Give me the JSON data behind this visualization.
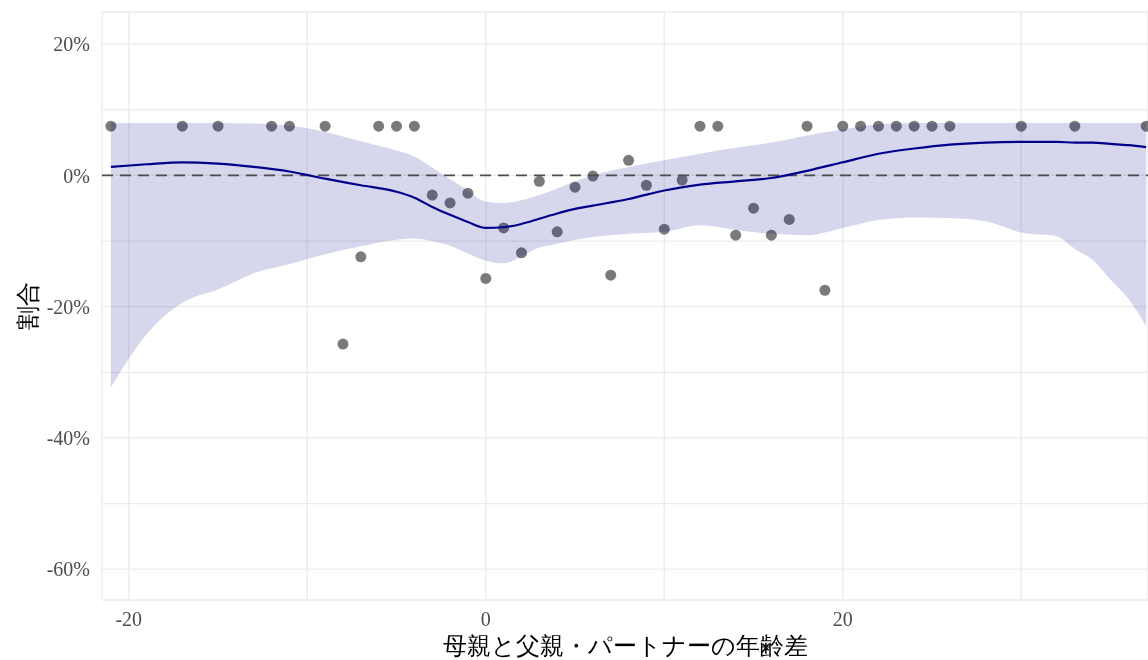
{
  "chart_data": {
    "type": "scatter",
    "xlabel": "母親と父親・パートナーの年齢差",
    "ylabel": "割合",
    "xlim": [
      -21.5,
      37.1
    ],
    "ylim": [
      -64.7,
      24.9
    ],
    "xticks": [
      -20,
      {
        "value": -10,
        "label": null
      },
      0,
      {
        "value": 10,
        "label": null
      },
      20,
      {
        "value": 30,
        "label": null
      }
    ],
    "yticks": [
      {
        "value": -60,
        "label": "-60%"
      },
      {
        "value": -50,
        "label": null
      },
      {
        "value": -40,
        "label": "-40%"
      },
      {
        "value": -30,
        "label": null
      },
      {
        "value": -20,
        "label": "-20%"
      },
      {
        "value": -10,
        "label": null
      },
      {
        "value": 0,
        "label": "0%"
      },
      {
        "value": 10,
        "label": null
      },
      {
        "value": 20,
        "label": "20%"
      }
    ],
    "grid": true,
    "ref_lines": [
      {
        "axis": "y",
        "value": 0,
        "color": "#4d4d4d",
        "line_style": "dashed"
      }
    ],
    "series": [
      {
        "color": "#7a7a7a",
        "x": [
          -21,
          -17,
          -15,
          -12,
          -11,
          -9,
          -8,
          -7,
          -6,
          -5,
          -4,
          -3,
          -2,
          -1,
          0,
          1,
          2,
          3,
          4,
          5,
          6,
          7,
          8,
          9,
          10,
          11,
          12,
          13,
          14,
          15,
          16,
          17,
          18,
          19,
          20,
          21,
          22,
          23,
          24,
          25,
          26,
          30,
          33,
          37
        ],
        "values": [
          7.5,
          7.5,
          7.5,
          7.5,
          7.5,
          7.5,
          -25.7,
          -12.4,
          7.5,
          7.5,
          7.5,
          -3.0,
          -4.2,
          -2.7,
          -15.7,
          -8.0,
          -11.8,
          -0.9,
          -8.6,
          -1.8,
          -0.1,
          -15.2,
          2.3,
          -1.5,
          -8.2,
          -0.7,
          7.5,
          7.5,
          -9.1,
          -5.0,
          -9.1,
          -6.7,
          7.5,
          -17.5,
          7.5,
          7.5,
          7.5,
          7.5,
          7.5,
          7.5,
          7.5,
          7.5,
          7.5,
          7.5
        ]
      },
      {
        "type": "line",
        "color": "#00008b",
        "x": [
          -21,
          -19,
          -17,
          -15,
          -13,
          -11,
          -9,
          -7,
          -5,
          -4,
          -3,
          -2,
          -1,
          0,
          1,
          2,
          3,
          4,
          5,
          6,
          8,
          10,
          12,
          14,
          16,
          18,
          20,
          22,
          24,
          26,
          28,
          30,
          32,
          33,
          34,
          35,
          36,
          37
        ],
        "values": [
          1.3,
          1.7,
          2.0,
          1.8,
          1.3,
          0.6,
          -0.5,
          -1.5,
          -2.5,
          -3.4,
          -4.8,
          -6.0,
          -7.1,
          -8.0,
          -7.9,
          -7.4,
          -6.6,
          -5.8,
          -5.1,
          -4.6,
          -3.6,
          -2.3,
          -1.4,
          -0.9,
          -0.4,
          0.7,
          2.0,
          3.3,
          4.1,
          4.7,
          5.0,
          5.1,
          5.1,
          5.0,
          5.0,
          4.8,
          4.6,
          4.3
        ],
        "lower": [
          -32.3,
          -24.2,
          -19.4,
          -17.4,
          -14.9,
          -13.5,
          -12.0,
          -10.8,
          -9.8,
          -9.6,
          -10.0,
          -10.7,
          -11.9,
          -13.0,
          -13.4,
          -12.3,
          -11.0,
          -10.4,
          -9.8,
          -9.4,
          -8.9,
          -8.6,
          -7.6,
          -8.3,
          -8.9,
          -9.1,
          -8.0,
          -6.8,
          -6.4,
          -6.5,
          -7.0,
          -8.7,
          -9.3,
          -11.2,
          -12.9,
          -15.9,
          -18.8,
          -23.0
        ],
        "upper": [
          8.0,
          8.0,
          8.0,
          8.0,
          7.9,
          7.6,
          6.6,
          5.2,
          3.8,
          2.9,
          1.2,
          -0.6,
          -2.3,
          -4.0,
          -4.2,
          -3.8,
          -3.0,
          -2.0,
          -0.9,
          0.0,
          1.3,
          2.3,
          3.3,
          4.2,
          5.0,
          6.1,
          7.0,
          7.8,
          8.0,
          8.0,
          8.0,
          8.0,
          8.0,
          8.0,
          8.0,
          8.0,
          8.0,
          8.0
        ]
      }
    ]
  }
}
